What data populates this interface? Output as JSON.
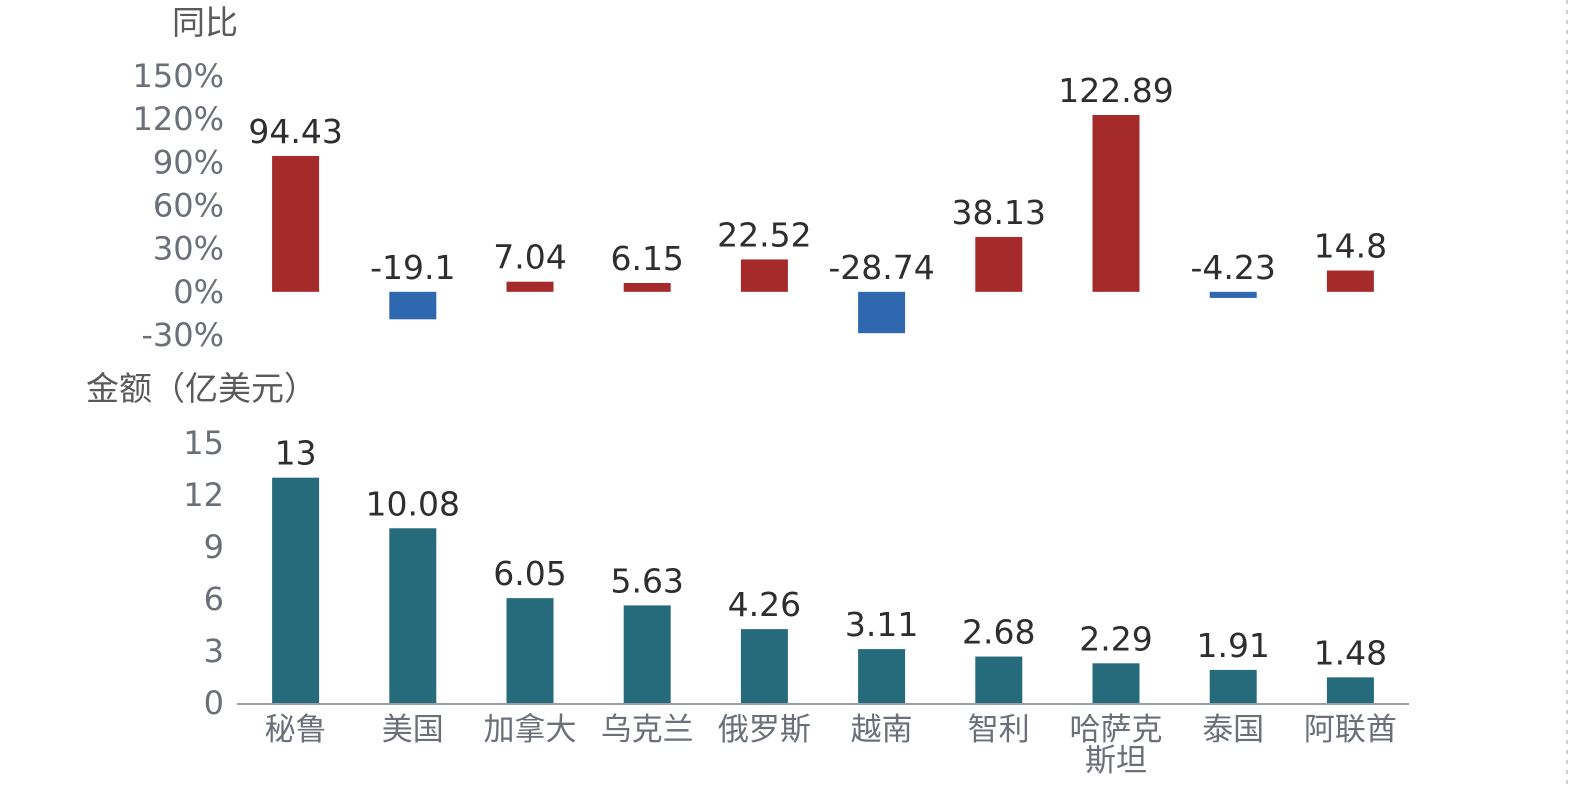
{
  "chart_data": [
    {
      "type": "bar",
      "title": "",
      "ylabel": "同比",
      "xlabel": "",
      "categories": [
        "秘鲁",
        "美国",
        "加拿大",
        "乌克兰",
        "俄罗斯",
        "越南",
        "智利",
        "哈萨克斯坦",
        "泰国",
        "阿联酋"
      ],
      "values": [
        94.43,
        -19.1,
        7.04,
        6.15,
        22.52,
        -28.74,
        38.13,
        122.89,
        -4.23,
        14.8
      ],
      "value_labels": [
        "94.43",
        "-19.1",
        "7.04",
        "6.15",
        "22.52",
        "-28.74",
        "38.13",
        "122.89",
        "-4.23",
        "14.8"
      ],
      "ylim": [
        -30,
        150
      ],
      "yticks": [
        -30,
        0,
        30,
        60,
        90,
        120,
        150
      ],
      "ytick_labels": [
        "-30%",
        "0%",
        "30%",
        "60%",
        "90%",
        "120%",
        "150%"
      ],
      "grid": false,
      "colors": {
        "positive": "#a52a2a",
        "negative": "#3068b0"
      }
    },
    {
      "type": "bar",
      "title": "",
      "ylabel": "金额（亿美元）",
      "xlabel": "",
      "categories": [
        "秘鲁",
        "美国",
        "加拿大",
        "乌克兰",
        "俄罗斯",
        "越南",
        "智利",
        "哈萨克斯坦",
        "泰国",
        "阿联酋"
      ],
      "category_lines": [
        [
          "秘鲁"
        ],
        [
          "美国"
        ],
        [
          "加拿大"
        ],
        [
          "乌克兰"
        ],
        [
          "俄罗斯"
        ],
        [
          "越南"
        ],
        [
          "智利"
        ],
        [
          "哈萨克",
          "斯坦"
        ],
        [
          "泰国"
        ],
        [
          "阿联酋"
        ]
      ],
      "values": [
        13,
        10.08,
        6.05,
        5.63,
        4.26,
        3.11,
        2.68,
        2.29,
        1.91,
        1.48
      ],
      "value_labels": [
        "13",
        "10.08",
        "6.05",
        "5.63",
        "4.26",
        "3.11",
        "2.68",
        "2.29",
        "1.91",
        "1.48"
      ],
      "ylim": [
        0,
        15
      ],
      "yticks": [
        0,
        3,
        6,
        9,
        12,
        15
      ],
      "ytick_labels": [
        "0",
        "3",
        "6",
        "9",
        "12",
        "15"
      ],
      "grid": false,
      "colors": {
        "bar": "#266b7b"
      }
    }
  ]
}
